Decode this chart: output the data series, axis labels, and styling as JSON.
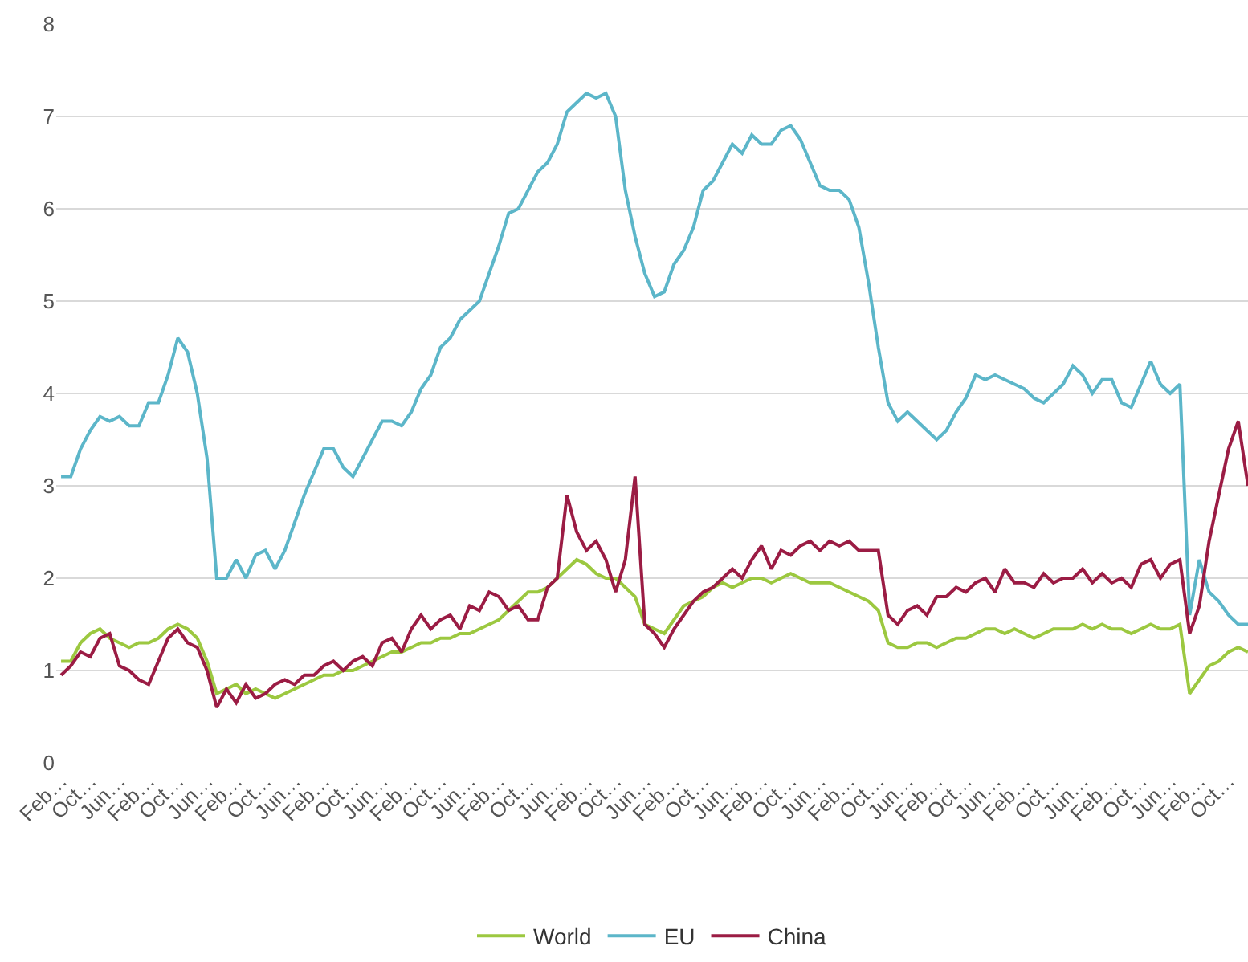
{
  "chart_data": {
    "type": "line",
    "categories": [
      "Feb…",
      null,
      null,
      "Oct…",
      null,
      null,
      "Jun…",
      null,
      null,
      "Feb…",
      null,
      null,
      "Oct…",
      null,
      null,
      "Jun…",
      null,
      null,
      "Feb…",
      null,
      null,
      "Oct…",
      null,
      null,
      "Jun…",
      null,
      null,
      "Feb…",
      null,
      null,
      "Oct…",
      null,
      null,
      "Jun…",
      null,
      null,
      "Feb…",
      null,
      null,
      "Oct…",
      null,
      null,
      "Jun…",
      null,
      null,
      "Feb…",
      null,
      null,
      "Oct…",
      null,
      null,
      "Jun…",
      null,
      null,
      "Feb…",
      null,
      null,
      "Oct…",
      null,
      null,
      "Jun…",
      null,
      null,
      "Feb…",
      null,
      null,
      "Oct…",
      null,
      null,
      "Jun…",
      null,
      null,
      "Feb…",
      null,
      null,
      "Oct…",
      null,
      null,
      "Jun…",
      null,
      null,
      "Feb…",
      null,
      null,
      "Oct…",
      null,
      null,
      "Jun…",
      null,
      null,
      "Feb…",
      null,
      null,
      "Oct…",
      null,
      null,
      "Jun…",
      null,
      null,
      "Feb…",
      null,
      null,
      "Oct…",
      null,
      null,
      "Jun…",
      null,
      null,
      "Feb…",
      null,
      null,
      "Oct…",
      null,
      null,
      "Jun…",
      null,
      null,
      "Feb…",
      null,
      null,
      "Oct…",
      null,
      null
    ],
    "series": [
      {
        "name": "World",
        "color": "#9cc840",
        "values": [
          1.1,
          1.1,
          1.3,
          1.4,
          1.45,
          1.35,
          1.3,
          1.25,
          1.3,
          1.3,
          1.35,
          1.45,
          1.5,
          1.45,
          1.35,
          1.1,
          0.75,
          0.8,
          0.85,
          0.75,
          0.8,
          0.75,
          0.7,
          0.75,
          0.8,
          0.85,
          0.9,
          0.95,
          0.95,
          1.0,
          1.0,
          1.05,
          1.1,
          1.15,
          1.2,
          1.2,
          1.25,
          1.3,
          1.3,
          1.35,
          1.35,
          1.4,
          1.4,
          1.45,
          1.5,
          1.55,
          1.65,
          1.75,
          1.85,
          1.85,
          1.9,
          2.0,
          2.1,
          2.2,
          2.15,
          2.05,
          2.0,
          2.0,
          1.9,
          1.8,
          1.5,
          1.45,
          1.4,
          1.55,
          1.7,
          1.75,
          1.8,
          1.9,
          1.95,
          1.9,
          1.95,
          2.0,
          2.0,
          1.95,
          2.0,
          2.05,
          2.0,
          1.95,
          1.95,
          1.95,
          1.9,
          1.85,
          1.8,
          1.75,
          1.65,
          1.3,
          1.25,
          1.25,
          1.3,
          1.3,
          1.25,
          1.3,
          1.35,
          1.35,
          1.4,
          1.45,
          1.45,
          1.4,
          1.45,
          1.4,
          1.35,
          1.4,
          1.45,
          1.45,
          1.45,
          1.5,
          1.45,
          1.5,
          1.45,
          1.45,
          1.4,
          1.45,
          1.5,
          1.45,
          1.45,
          1.5,
          0.75,
          0.9,
          1.05,
          1.1,
          1.2,
          1.25,
          1.2
        ]
      },
      {
        "name": "EU",
        "color": "#5cb6c9",
        "values": [
          3.1,
          3.1,
          3.4,
          3.6,
          3.75,
          3.7,
          3.75,
          3.65,
          3.65,
          3.9,
          3.9,
          4.2,
          4.6,
          4.45,
          4.0,
          3.3,
          2.0,
          2.0,
          2.2,
          2.0,
          2.25,
          2.3,
          2.1,
          2.3,
          2.6,
          2.9,
          3.15,
          3.4,
          3.4,
          3.2,
          3.1,
          3.3,
          3.5,
          3.7,
          3.7,
          3.65,
          3.8,
          4.05,
          4.2,
          4.5,
          4.6,
          4.8,
          4.9,
          5.0,
          5.3,
          5.6,
          5.95,
          6.0,
          6.2,
          6.4,
          6.5,
          6.7,
          7.05,
          7.15,
          7.25,
          7.2,
          7.25,
          7.0,
          6.2,
          5.7,
          5.3,
          5.05,
          5.1,
          5.4,
          5.55,
          5.8,
          6.2,
          6.3,
          6.5,
          6.7,
          6.6,
          6.8,
          6.7,
          6.7,
          6.85,
          6.9,
          6.75,
          6.5,
          6.25,
          6.2,
          6.2,
          6.1,
          5.8,
          5.2,
          4.5,
          3.9,
          3.7,
          3.8,
          3.7,
          3.6,
          3.5,
          3.6,
          3.8,
          3.95,
          4.2,
          4.15,
          4.2,
          4.15,
          4.1,
          4.05,
          3.95,
          3.9,
          4.0,
          4.1,
          4.3,
          4.2,
          4.0,
          4.15,
          4.15,
          3.9,
          3.85,
          4.1,
          4.35,
          4.1,
          4.0,
          4.1,
          1.6,
          2.2,
          1.85,
          1.75,
          1.6,
          1.5,
          1.5
        ]
      },
      {
        "name": "China",
        "color": "#9b1c44",
        "values": [
          0.95,
          1.05,
          1.2,
          1.15,
          1.35,
          1.4,
          1.05,
          1.0,
          0.9,
          0.85,
          1.1,
          1.35,
          1.45,
          1.3,
          1.25,
          1.0,
          0.6,
          0.8,
          0.65,
          0.85,
          0.7,
          0.75,
          0.85,
          0.9,
          0.85,
          0.95,
          0.95,
          1.05,
          1.1,
          1.0,
          1.1,
          1.15,
          1.05,
          1.3,
          1.35,
          1.2,
          1.45,
          1.6,
          1.45,
          1.55,
          1.6,
          1.45,
          1.7,
          1.65,
          1.85,
          1.8,
          1.65,
          1.7,
          1.55,
          1.55,
          1.9,
          2.0,
          2.9,
          2.5,
          2.3,
          2.4,
          2.2,
          1.85,
          2.2,
          3.1,
          1.5,
          1.4,
          1.25,
          1.45,
          1.6,
          1.75,
          1.85,
          1.9,
          2.0,
          2.1,
          2.0,
          2.2,
          2.35,
          2.1,
          2.3,
          2.25,
          2.35,
          2.4,
          2.3,
          2.4,
          2.35,
          2.4,
          2.3,
          2.3,
          2.3,
          1.6,
          1.5,
          1.65,
          1.7,
          1.6,
          1.8,
          1.8,
          1.9,
          1.85,
          1.95,
          2.0,
          1.85,
          2.1,
          1.95,
          1.95,
          1.9,
          2.05,
          1.95,
          2.0,
          2.0,
          2.1,
          1.95,
          2.05,
          1.95,
          2.0,
          1.9,
          2.15,
          2.2,
          2.0,
          2.15,
          2.2,
          1.4,
          1.7,
          2.4,
          2.9,
          3.4,
          3.7,
          3.0
        ]
      }
    ],
    "ylim": [
      0,
      8
    ],
    "yticks": [
      0,
      1,
      2,
      3,
      4,
      5,
      6,
      7,
      8
    ],
    "grid": "y",
    "legend": "bottom",
    "line_style": "solid",
    "marker": "none"
  }
}
